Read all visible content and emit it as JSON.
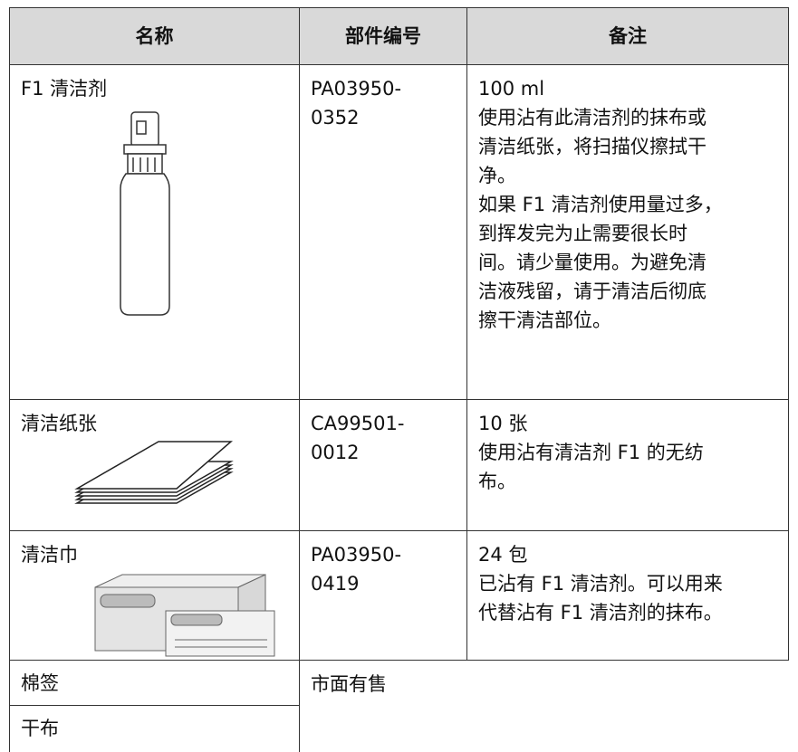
{
  "table": {
    "header": [
      "名称",
      "部件编号",
      "备注"
    ],
    "rows": [
      {
        "name": "F1 清洁剂",
        "part_number": [
          "PA03950-",
          "0352"
        ],
        "remarks": [
          "100 ml",
          "使用沾有此清洁剂的抹布或",
          "清洁纸张，将扫描仪擦拭干",
          "净。",
          "如果 F1 清洁剂使用量过多，",
          "到挥发完为止需要很长时",
          "间。请少量使用。为避免清",
          "洁液残留，请于清洁后彻底",
          "擦干清洁部位。"
        ]
      },
      {
        "name": "清洁纸张",
        "part_number": [
          "CA99501-",
          "0012"
        ],
        "remarks": [
          "10 张",
          "使用沾有清洁剂 F1 的无纺",
          "布。"
        ]
      },
      {
        "name": "清洁巾",
        "part_number": [
          "PA03950-",
          "0419"
        ],
        "remarks": [
          "24 包",
          "已沾有 F1 清洁剂。可以用来",
          "代替沾有 F1 清洁剂的抹布。"
        ]
      }
    ],
    "other_rows": {
      "names": [
        "棉签",
        "干布"
      ],
      "part_number": "市面有售"
    }
  }
}
